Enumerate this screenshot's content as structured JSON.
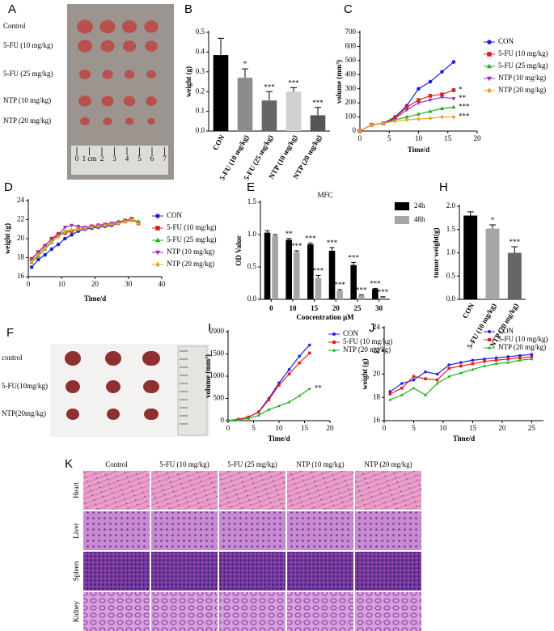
{
  "chart_data": [
    {
      "type": "bar",
      "panel": "B",
      "ylabel": "weight (g)",
      "categories": [
        "CON",
        "5-FU (10 mg/kg)",
        "5-FU (25 mg/kg)",
        "NTP (10 mg/kg)",
        "NTP (20 mg/kg)"
      ],
      "values": [
        0.385,
        0.27,
        0.155,
        0.2,
        0.08
      ],
      "errors": [
        0.085,
        0.045,
        0.045,
        0.02,
        0.04
      ],
      "annotations": [
        null,
        "*",
        "***",
        "***",
        "***"
      ],
      "colors": [
        "#000000",
        "#8c8c8c",
        "#666666",
        "#d0d0d0",
        "#555555"
      ],
      "ylim": [
        0,
        0.5
      ],
      "yticks": [
        {
          "value": 0,
          "label": "0.0"
        },
        0.1,
        0.2,
        0.3,
        0.4,
        0.5
      ]
    },
    {
      "type": "line",
      "panel": "C",
      "ylabel": "volume (mm³)",
      "xlabel": "Time/d",
      "x": [
        0,
        2,
        4,
        6,
        8,
        10,
        12,
        14,
        16
      ],
      "xlim": [
        0,
        20
      ],
      "xticks": [
        0,
        5,
        10,
        15,
        20
      ],
      "ylim": [
        0,
        700
      ],
      "yticks": [
        0,
        100,
        200,
        300,
        400,
        500,
        600,
        700
      ],
      "series": [
        {
          "name": "CON",
          "color": "#1f1fe0",
          "marker": "circle",
          "values": [
            0,
            45,
            55,
            100,
            180,
            300,
            350,
            420,
            490
          ],
          "annotation": null
        },
        {
          "name": "5-FU (10 mg/kg)",
          "color": "#e01f1f",
          "marker": "square",
          "values": [
            0,
            45,
            55,
            95,
            170,
            220,
            250,
            260,
            290
          ],
          "annotation": "*"
        },
        {
          "name": "5-FU (25 mg/kg)",
          "color": "#1fb01f",
          "marker": "triangle",
          "values": [
            0,
            45,
            55,
            80,
            100,
            120,
            140,
            160,
            170
          ],
          "annotation": "***"
        },
        {
          "name": "NTP (10 mg/kg)",
          "color": "#9b30c0",
          "marker": "triangle-down",
          "values": [
            0,
            45,
            55,
            90,
            150,
            200,
            220,
            240,
            230
          ],
          "annotation": "**"
        },
        {
          "name": "NTP (20 mg/kg)",
          "color": "#f0a020",
          "marker": "diamond",
          "values": [
            0,
            45,
            55,
            70,
            80,
            85,
            90,
            100,
            100
          ],
          "annotation": "***"
        }
      ]
    },
    {
      "type": "line",
      "panel": "D",
      "ylabel": "weight (g)",
      "xlabel": "Time/d",
      "x": [
        1,
        3,
        5,
        7,
        9,
        11,
        13,
        15,
        17,
        19,
        21,
        23,
        25,
        27,
        29,
        31,
        33
      ],
      "xlim": [
        0,
        40
      ],
      "xticks": [
        0,
        10,
        20,
        30,
        40
      ],
      "ylim": [
        16,
        24
      ],
      "yticks": [
        16,
        18,
        20,
        22,
        24
      ],
      "series": [
        {
          "name": "CON",
          "color": "#1f1fe0",
          "marker": "circle",
          "values": [
            17.0,
            17.8,
            18.3,
            18.9,
            19.4,
            20.0,
            20.4,
            20.8,
            21.0,
            21.1,
            21.2,
            21.3,
            21.4,
            21.6,
            21.8,
            22.0,
            21.7
          ],
          "annotation": null
        },
        {
          "name": "5-FU (10 mg/kg)",
          "color": "#e01f1f",
          "marker": "square",
          "values": [
            17.8,
            18.6,
            19.2,
            20.0,
            20.5,
            20.6,
            20.8,
            21.0,
            21.1,
            21.3,
            21.4,
            21.5,
            21.6,
            21.7,
            21.9,
            22.1,
            21.6
          ],
          "annotation": null
        },
        {
          "name": "5-FU (25 mg/kg)",
          "color": "#1fb01f",
          "marker": "triangle",
          "values": [
            17.5,
            18.2,
            18.9,
            19.6,
            20.3,
            20.8,
            20.9,
            21.0,
            21.2,
            21.2,
            21.3,
            21.4,
            21.6,
            21.8,
            21.9,
            22.0,
            21.8
          ],
          "annotation": null
        },
        {
          "name": "NTP (10 mg/kg)",
          "color": "#9b30c0",
          "marker": "triangle-down",
          "values": [
            17.9,
            18.6,
            19.3,
            19.9,
            20.4,
            21.2,
            21.4,
            21.3,
            21.2,
            21.3,
            21.4,
            21.5,
            21.6,
            21.7,
            21.8,
            21.9,
            21.7
          ],
          "annotation": null
        },
        {
          "name": "NTP (20 mg/kg)",
          "color": "#f0a020",
          "marker": "diamond",
          "values": [
            17.6,
            18.3,
            19.0,
            19.7,
            20.2,
            20.7,
            20.9,
            21.0,
            21.1,
            21.2,
            21.3,
            21.4,
            21.5,
            21.6,
            21.8,
            22.0,
            21.6
          ],
          "annotation": null
        }
      ]
    },
    {
      "type": "grouped-bar",
      "panel": "E",
      "title": "MFC",
      "ylabel": "OD Value",
      "xlabel": "Concentration μM",
      "categories": [
        "0",
        "10",
        "15",
        "20",
        "25",
        "30"
      ],
      "ylim": [
        0,
        1.5
      ],
      "yticks": [
        {
          "value": 0,
          "label": "0.0"
        },
        0.5,
        {
          "value": 1,
          "label": "1.0"
        },
        1.5
      ],
      "series": [
        {
          "name": "24h",
          "color": "#000000",
          "values": [
            1.03,
            0.92,
            0.85,
            0.75,
            0.53,
            0.16
          ],
          "errors": [
            0.03,
            0.02,
            0.02,
            0.05,
            0.04,
            0.01
          ],
          "annotations": [
            null,
            "**",
            "***",
            "***",
            "***",
            "***"
          ]
        },
        {
          "name": "48h",
          "color": "#a6a6a6",
          "values": [
            0.98,
            0.73,
            0.33,
            0.13,
            0.06,
            0.03
          ],
          "errors": [
            0.02,
            0.02,
            0.04,
            0.02,
            0.01,
            0.01
          ],
          "annotations": [
            null,
            "***",
            "***",
            "***",
            "***",
            "***"
          ]
        }
      ]
    },
    {
      "type": "bar",
      "panel": "H",
      "ylabel": "tumor weight(g)",
      "categories": [
        "CON",
        "5-FU (10 mg/kg)",
        "NTP (20 mg/kg)"
      ],
      "values": [
        1.8,
        1.52,
        1.0
      ],
      "errors": [
        0.08,
        0.08,
        0.13
      ],
      "annotations": [
        null,
        "*",
        "***"
      ],
      "colors": [
        "#000000",
        "#a6a6a6",
        "#666666"
      ],
      "ylim": [
        0,
        2
      ],
      "yticks": [
        {
          "value": 0,
          "label": "0.0"
        },
        0.5,
        {
          "value": 1,
          "label": "1.0"
        },
        1.5,
        {
          "value": 2,
          "label": "2.0"
        }
      ]
    },
    {
      "type": "line",
      "panel": "I",
      "ylabel": "volume (mm³)",
      "xlabel": "Time/d",
      "x": [
        0,
        2,
        4,
        6,
        8,
        10,
        12,
        14,
        16
      ],
      "xlim": [
        0,
        20
      ],
      "xticks": [
        0,
        5,
        10,
        15,
        20
      ],
      "ylim": [
        0,
        2000
      ],
      "yticks": [
        0,
        500,
        1000,
        1500,
        2000
      ],
      "series": [
        {
          "name": "CON",
          "color": "#1f1fe0",
          "marker": "circle",
          "values": [
            0,
            30,
            80,
            200,
            500,
            850,
            1150,
            1450,
            1700
          ],
          "annotation": null
        },
        {
          "name": "5-FU (10 mg/kg)",
          "color": "#e01f1f",
          "marker": "square",
          "values": [
            0,
            30,
            80,
            190,
            470,
            800,
            1050,
            1300,
            1520
          ],
          "annotation": null
        },
        {
          "name": "NTP (20 mg/kg)",
          "color": "#1fb01f",
          "marker": "triangle",
          "values": [
            0,
            20,
            50,
            120,
            250,
            330,
            420,
            560,
            720
          ],
          "annotation": "**"
        }
      ]
    },
    {
      "type": "line",
      "panel": "J",
      "ylabel": "weight (g)",
      "xlabel": "Time/d",
      "x": [
        1,
        3,
        5,
        7,
        9,
        11,
        13,
        15,
        17,
        19,
        21,
        23,
        25
      ],
      "xlim": [
        0,
        27
      ],
      "xticks": [
        0,
        5,
        10,
        15,
        20,
        25
      ],
      "ylim": [
        16,
        24
      ],
      "yticks": [
        16,
        18,
        20,
        22,
        24
      ],
      "series": [
        {
          "name": "CON",
          "color": "#1f1fe0",
          "marker": "circle",
          "values": [
            18.5,
            19.2,
            19.5,
            20.2,
            20.0,
            20.8,
            21.0,
            21.2,
            21.3,
            21.4,
            21.5,
            21.6,
            21.7
          ],
          "annotation": null
        },
        {
          "name": "5-FU (10 mg/kg)",
          "color": "#e01f1f",
          "marker": "square",
          "values": [
            18.3,
            18.8,
            19.8,
            19.6,
            19.5,
            20.5,
            20.7,
            20.9,
            21.1,
            21.2,
            21.3,
            21.4,
            21.5
          ],
          "annotation": null
        },
        {
          "name": "NTP (20 mg/kg)",
          "color": "#1fb01f",
          "marker": "triangle",
          "values": [
            17.8,
            18.2,
            18.8,
            18.2,
            19.2,
            19.8,
            20.1,
            20.4,
            20.7,
            20.9,
            21.0,
            21.2,
            21.3
          ],
          "annotation": null
        }
      ]
    }
  ],
  "photos": {
    "A": {
      "panel": "A",
      "labels": [
        "Control",
        "5-FU (10 mg/kg)",
        "5-FU (25 mg/kg)",
        "NTP (10 mg/kg)",
        "NTP (20 mg/kg)"
      ],
      "ruler": [
        "0",
        "1 cm",
        "2",
        "3",
        "4",
        "5",
        "6",
        "7"
      ]
    },
    "F": {
      "panel": "F",
      "labels": [
        "control",
        "5-FU(10mg/kg)",
        "NTP(20mg/kg)"
      ]
    }
  },
  "histology": {
    "panel": "K",
    "columns": [
      "Control",
      "5-FU (10 mg/kg)",
      "5-FU (25 mg/kg)",
      "NTP (10 mg/kg)",
      "NTP (20 mg/kg)"
    ],
    "rows": [
      "Heart",
      "Liver",
      "Spleen",
      "Kidney"
    ]
  }
}
